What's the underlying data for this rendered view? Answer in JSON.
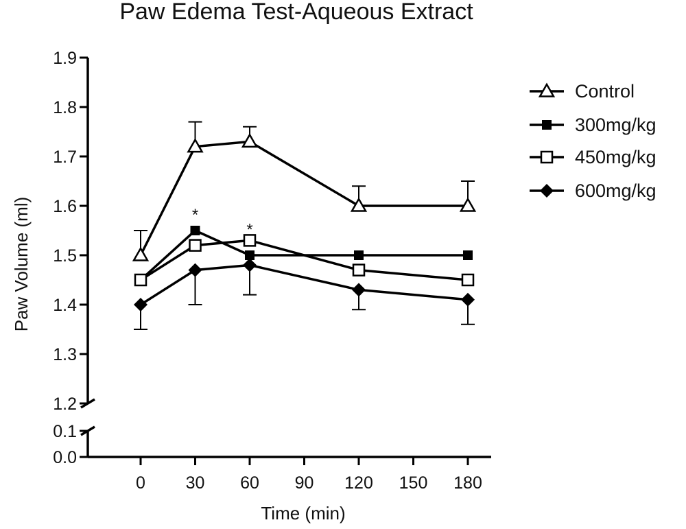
{
  "chart_data": {
    "type": "line",
    "title": "Paw Edema Test-Aqueous Extract",
    "xlabel": "Time (min)",
    "ylabel": "Paw Volume (ml)",
    "x_ticks": [
      "0",
      "30",
      "60",
      "90",
      "120",
      "150",
      "180"
    ],
    "y_ticks_upper": [
      "1.2",
      "1.3",
      "1.4",
      "1.5",
      "1.6",
      "1.7",
      "1.8",
      "1.9"
    ],
    "y_ticks_lower": [
      "0.0",
      "0.1"
    ],
    "xlim": [
      -30,
      195
    ],
    "ylim_upper": [
      1.2,
      1.9
    ],
    "ylim_lower": [
      0.0,
      0.1
    ],
    "axis_break": true,
    "legend_position": "right",
    "x": [
      0,
      30,
      60,
      120,
      180
    ],
    "series": [
      {
        "name": "Control",
        "marker": "triangle-open",
        "values": [
          1.5,
          1.72,
          1.73,
          1.6,
          1.6
        ],
        "error_up": [
          0.05,
          0.05,
          0.03,
          0.04,
          0.05
        ]
      },
      {
        "name": "300mg/kg",
        "marker": "square-filled",
        "values": [
          1.45,
          1.55,
          1.5,
          1.5,
          1.5
        ],
        "error_up": [
          0,
          0,
          0,
          0,
          0
        ]
      },
      {
        "name": "450mg/kg",
        "marker": "square-open",
        "values": [
          1.45,
          1.52,
          1.53,
          1.47,
          1.45
        ],
        "error_up": [
          0,
          0,
          0,
          0,
          0
        ]
      },
      {
        "name": "600mg/kg",
        "marker": "diamond-filled",
        "values": [
          1.4,
          1.47,
          1.48,
          1.43,
          1.41
        ],
        "error_down": [
          0.05,
          0.07,
          0.06,
          0.04,
          0.05
        ]
      }
    ],
    "annotations": [
      {
        "text": "*",
        "x": 30,
        "y": 1.585
      },
      {
        "text": "*",
        "x": 60,
        "y": 1.555
      }
    ]
  }
}
